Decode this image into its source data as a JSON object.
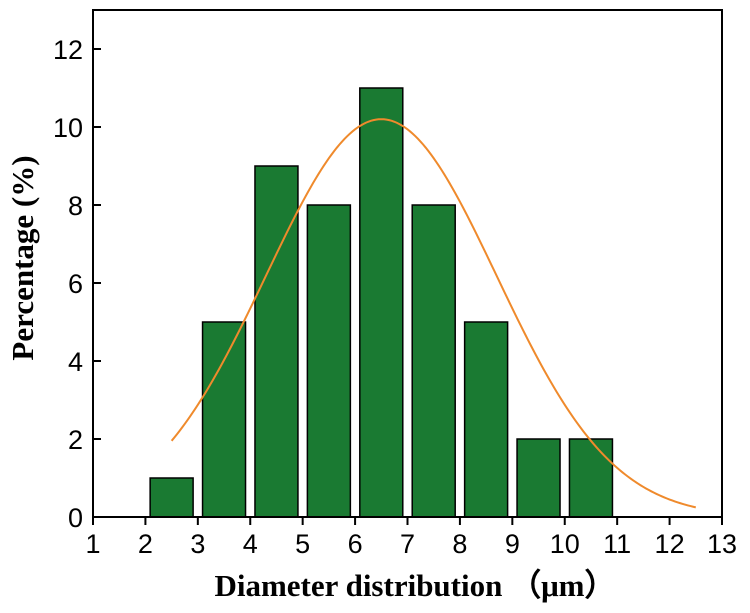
{
  "chart_data": {
    "type": "bar",
    "title": "",
    "xlabel": "Diameter distribution （μm）",
    "ylabel": "Percentage (%)",
    "xlim": [
      1,
      13
    ],
    "ylim": [
      0,
      13
    ],
    "x_ticks": [
      1,
      2,
      3,
      4,
      5,
      6,
      7,
      8,
      9,
      10,
      11,
      12,
      13
    ],
    "y_ticks": [
      0,
      2,
      4,
      6,
      8,
      10,
      12
    ],
    "bars": [
      {
        "x": 2.5,
        "value": 1
      },
      {
        "x": 3.5,
        "value": 5
      },
      {
        "x": 4.5,
        "value": 9
      },
      {
        "x": 5.5,
        "value": 8
      },
      {
        "x": 6.5,
        "value": 11
      },
      {
        "x": 7.5,
        "value": 8
      },
      {
        "x": 8.5,
        "value": 5
      },
      {
        "x": 9.5,
        "value": 2
      },
      {
        "x": 10.5,
        "value": 2
      }
    ],
    "fit_curve": {
      "type": "gaussian",
      "x_range": [
        2.5,
        12.5
      ],
      "peak_x": 6.5,
      "peak_y": 10.2,
      "sigma": 2.2
    },
    "grid": false,
    "colors": {
      "bar_fill": "#1a7a32",
      "bar_stroke": "#000000",
      "fit_line": "#ef8a2c"
    }
  }
}
